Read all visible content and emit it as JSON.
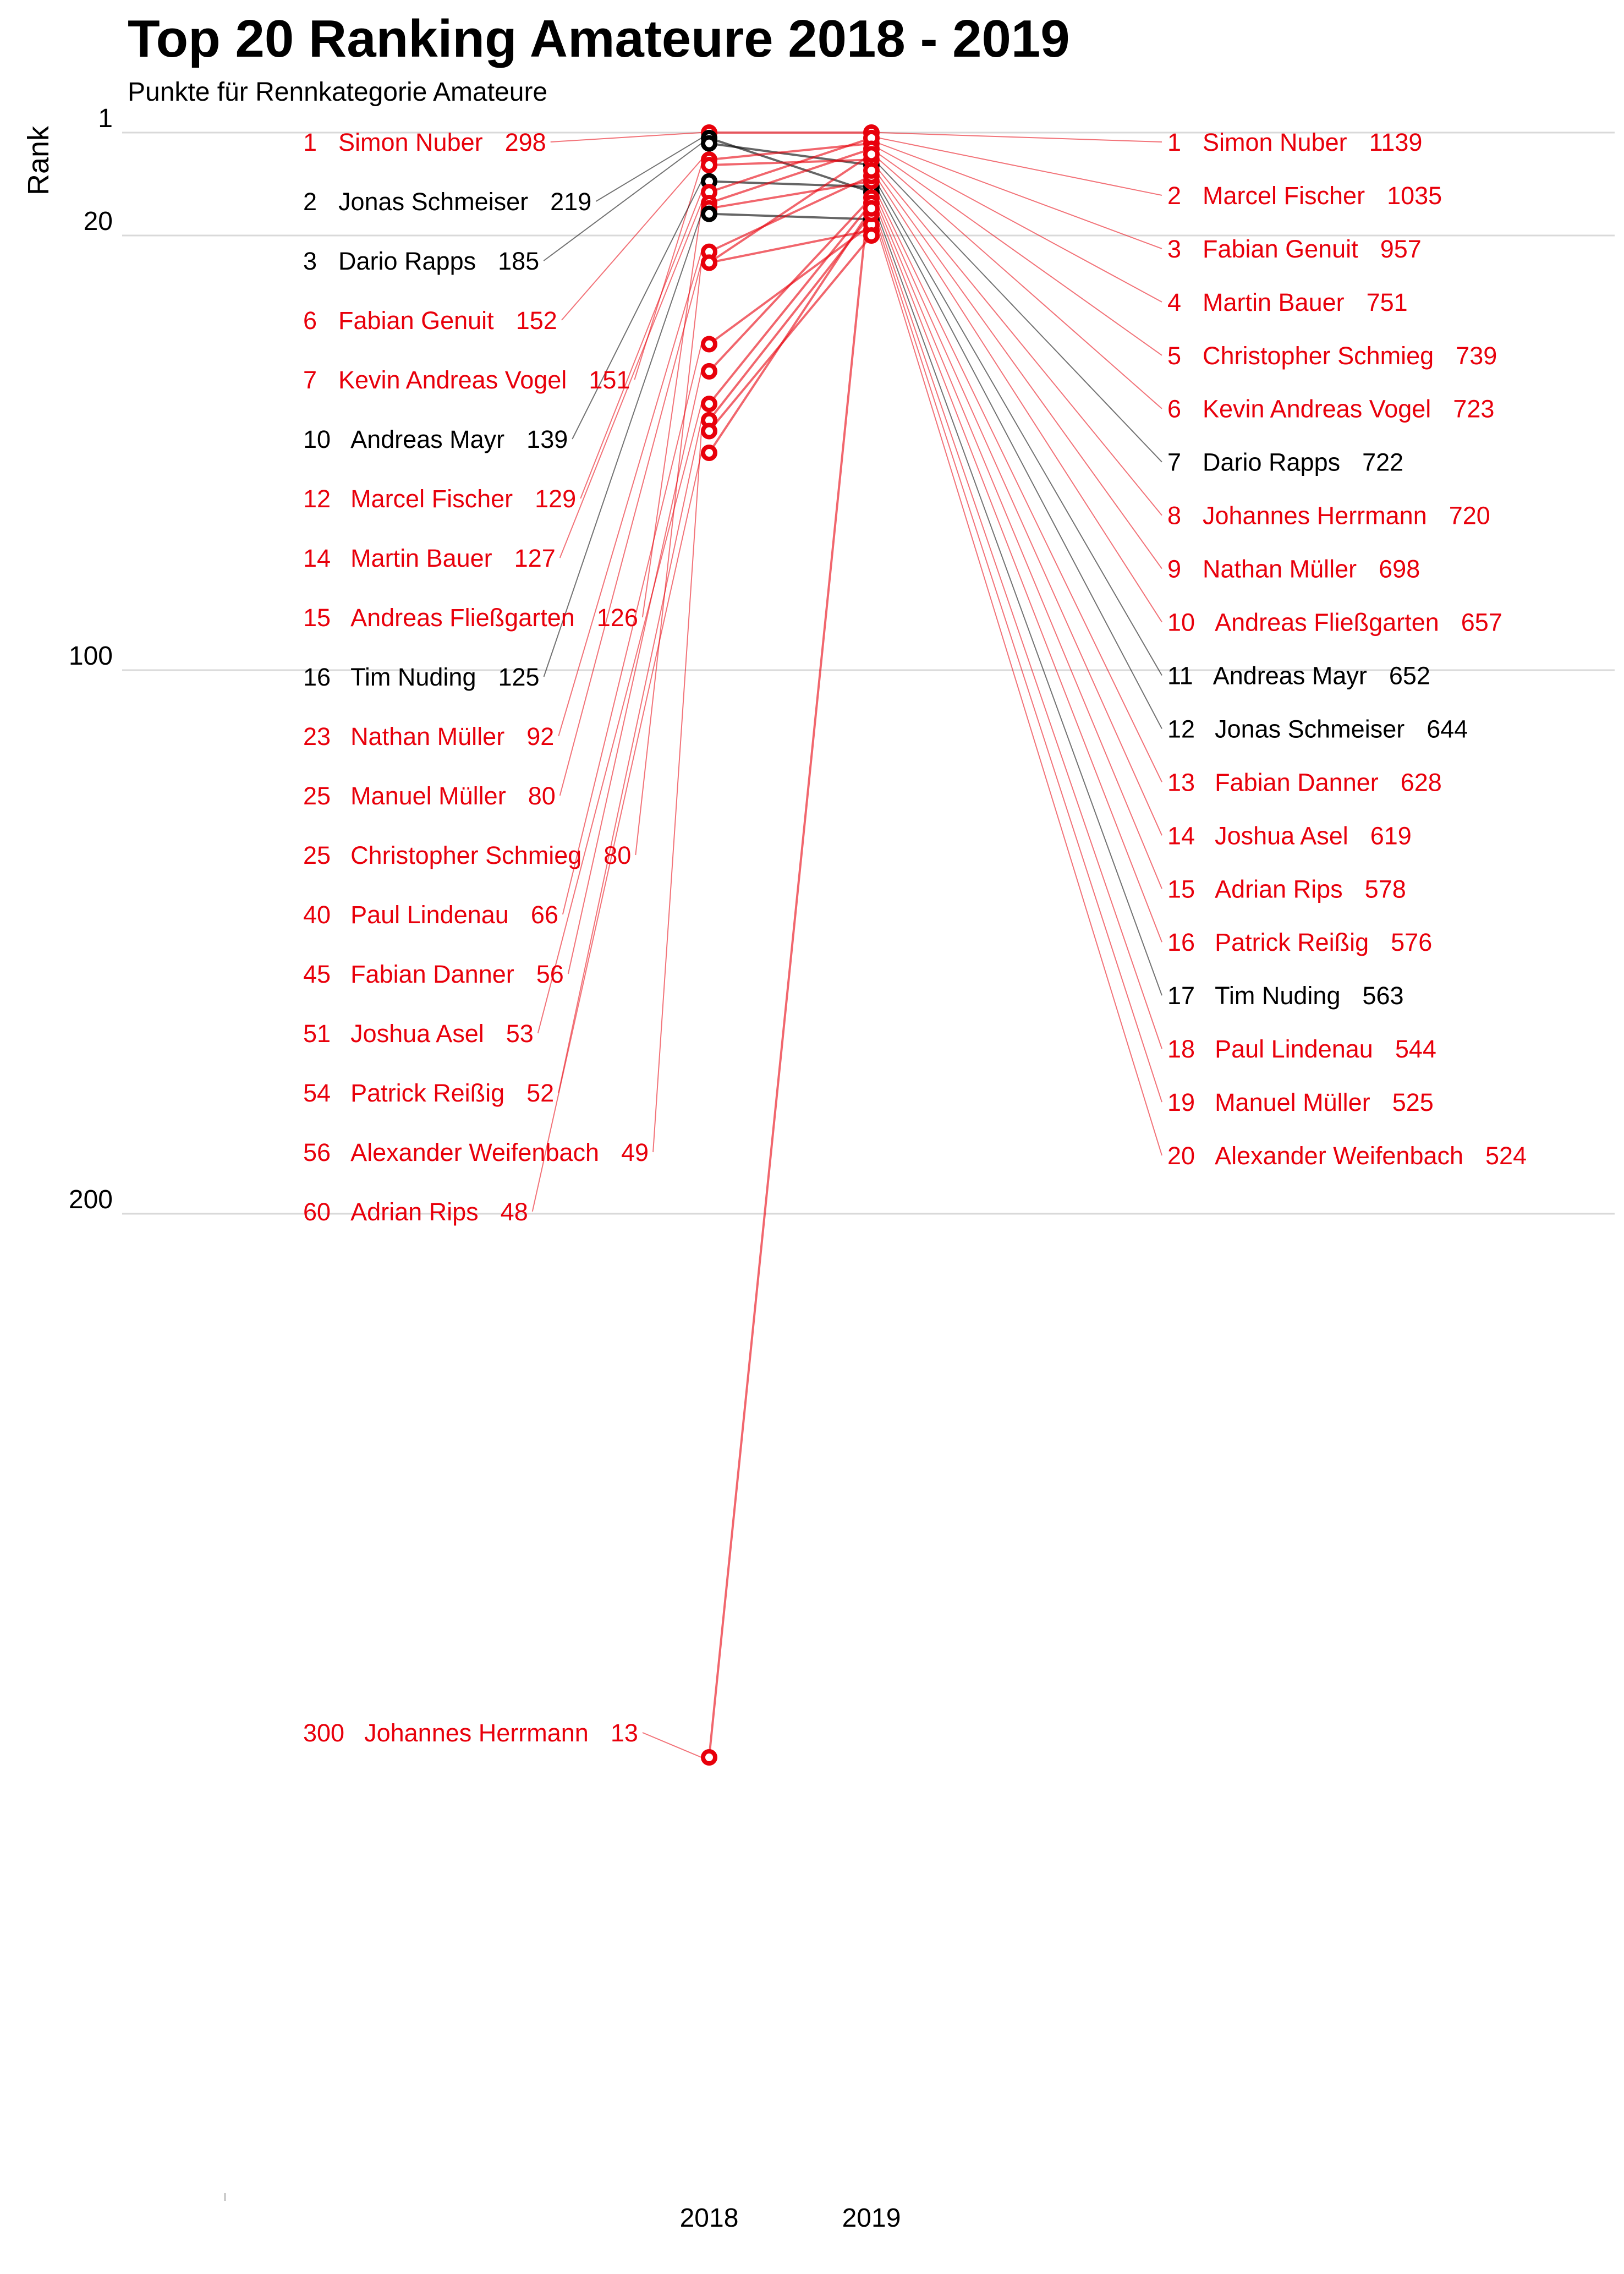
{
  "chart_data": {
    "type": "slope",
    "title": "Top 20 Ranking Amateure 2018 - 2019",
    "subtitle": "Punkte für Rennkategorie Amateure",
    "ylabel": "Rank",
    "y_axis": {
      "ticks": [
        1,
        20,
        100,
        200
      ],
      "reversed": true,
      "ylim": [
        1,
        300
      ]
    },
    "x": [
      "2018",
      "2019"
    ],
    "colors": {
      "improved": "#e8000b",
      "declined": "#000000",
      "text": "#000000",
      "grid": "#d9d9d9"
    },
    "riders": [
      {
        "name": "Simon Nuber",
        "rank_2018": 1,
        "points_2018": 298,
        "rank_2019": 1,
        "points_2019": 1139,
        "color": "red"
      },
      {
        "name": "Jonas Schmeiser",
        "rank_2018": 2,
        "points_2018": 219,
        "rank_2019": 12,
        "points_2019": 644,
        "color": "black"
      },
      {
        "name": "Dario Rapps",
        "rank_2018": 3,
        "points_2018": 185,
        "rank_2019": 7,
        "points_2019": 722,
        "color": "black"
      },
      {
        "name": "Fabian Genuit",
        "rank_2018": 6,
        "points_2018": 152,
        "rank_2019": 3,
        "points_2019": 957,
        "color": "red"
      },
      {
        "name": "Kevin Andreas Vogel",
        "rank_2018": 7,
        "points_2018": 151,
        "rank_2019": 6,
        "points_2019": 723,
        "color": "red"
      },
      {
        "name": "Andreas Mayr",
        "rank_2018": 10,
        "points_2018": 139,
        "rank_2019": 11,
        "points_2019": 652,
        "color": "black"
      },
      {
        "name": "Marcel Fischer",
        "rank_2018": 12,
        "points_2018": 129,
        "rank_2019": 2,
        "points_2019": 1035,
        "color": "red"
      },
      {
        "name": "Martin Bauer",
        "rank_2018": 14,
        "points_2018": 127,
        "rank_2019": 4,
        "points_2019": 751,
        "color": "red"
      },
      {
        "name": "Andreas Fließgarten",
        "rank_2018": 15,
        "points_2018": 126,
        "rank_2019": 10,
        "points_2019": 657,
        "color": "red"
      },
      {
        "name": "Tim Nuding",
        "rank_2018": 16,
        "points_2018": 125,
        "rank_2019": 17,
        "points_2019": 563,
        "color": "black"
      },
      {
        "name": "Nathan Müller",
        "rank_2018": 23,
        "points_2018": 92,
        "rank_2019": 9,
        "points_2019": 698,
        "color": "red"
      },
      {
        "name": "Manuel Müller",
        "rank_2018": 25,
        "points_2018": 80,
        "rank_2019": 19,
        "points_2019": 525,
        "color": "red"
      },
      {
        "name": "Christopher Schmieg",
        "rank_2018": 25,
        "points_2018": 80,
        "rank_2019": 5,
        "points_2019": 739,
        "color": "red"
      },
      {
        "name": "Paul Lindenau",
        "rank_2018": 40,
        "points_2018": 66,
        "rank_2019": 18,
        "points_2019": 544,
        "color": "red"
      },
      {
        "name": "Fabian Danner",
        "rank_2018": 45,
        "points_2018": 56,
        "rank_2019": 13,
        "points_2019": 628,
        "color": "red"
      },
      {
        "name": "Joshua Asel",
        "rank_2018": 51,
        "points_2018": 53,
        "rank_2019": 14,
        "points_2019": 619,
        "color": "red"
      },
      {
        "name": "Patrick Reißig",
        "rank_2018": 54,
        "points_2018": 52,
        "rank_2019": 16,
        "points_2019": 576,
        "color": "red"
      },
      {
        "name": "Alexander Weifenbach",
        "rank_2018": 56,
        "points_2018": 49,
        "rank_2019": 20,
        "points_2019": 524,
        "color": "red"
      },
      {
        "name": "Adrian Rips",
        "rank_2018": 60,
        "points_2018": 48,
        "rank_2019": 15,
        "points_2019": 578,
        "color": "red"
      },
      {
        "name": "Johannes Herrmann",
        "rank_2018": 300,
        "points_2018": 13,
        "rank_2019": 8,
        "points_2019": 720,
        "color": "red"
      }
    ]
  }
}
